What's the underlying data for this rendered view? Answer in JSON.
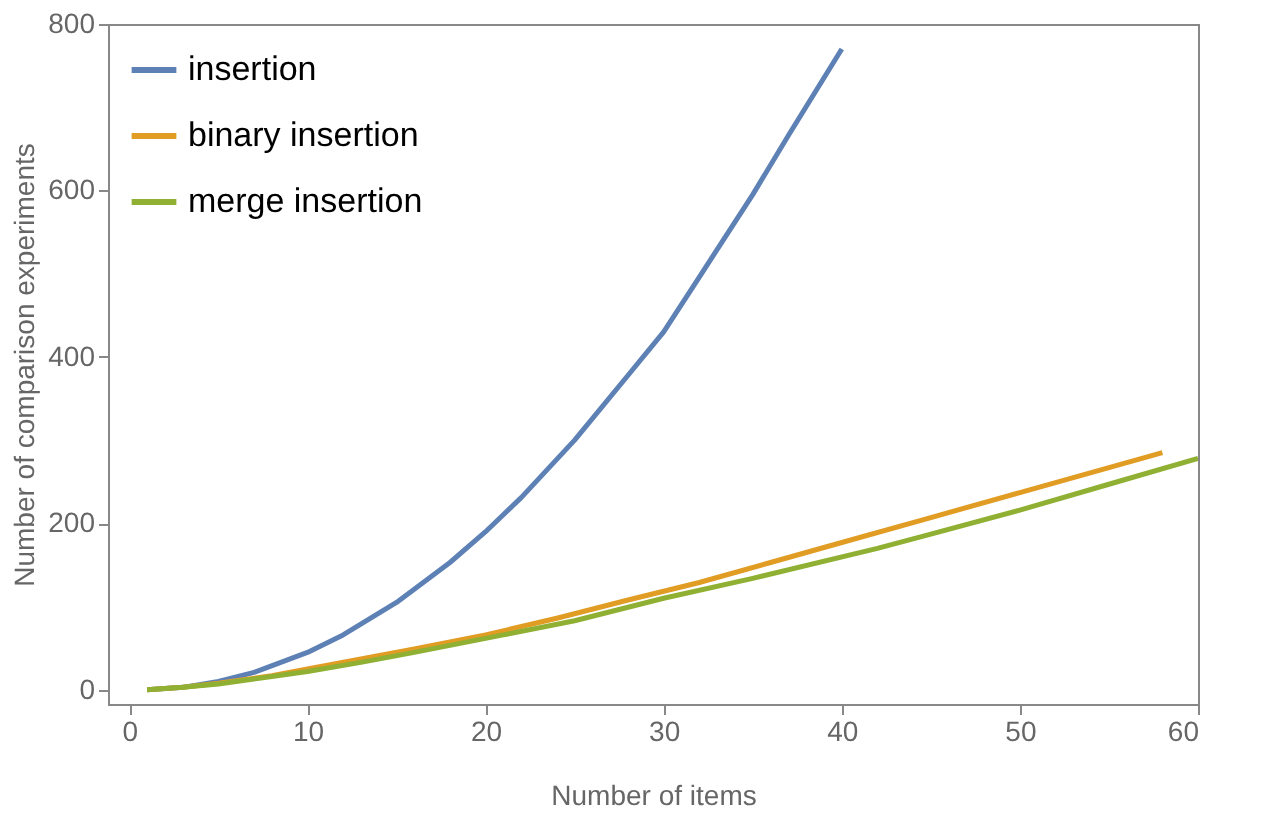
{
  "chart_data": {
    "type": "line",
    "xlabel": "Number of items",
    "ylabel": "Number of comparison experiments",
    "xlim": [
      -1.2,
      60
    ],
    "ylim": [
      -17,
      800
    ],
    "xticks": [
      0,
      10,
      20,
      30,
      40,
      50,
      60
    ],
    "yticks": [
      0,
      200,
      400,
      600,
      800
    ],
    "grid": false,
    "legend": "top left",
    "line_style": "solid",
    "marker": "none",
    "series": [
      {
        "name": "insertion",
        "color": "#5e81b5",
        "x": [
          1,
          3,
          5,
          7,
          10,
          12,
          15,
          18,
          20,
          22,
          25,
          28,
          30,
          32,
          35,
          37,
          40
        ],
        "values": [
          0,
          3,
          10,
          21,
          45,
          66,
          105,
          153,
          190,
          231,
          300,
          378,
          430,
          496,
          595,
          666,
          770
        ]
      },
      {
        "name": "binary insertion",
        "color": "#e19c24",
        "x": [
          1,
          3,
          5,
          8,
          10,
          13,
          16,
          20,
          24,
          28,
          32,
          36,
          40,
          45,
          50,
          55,
          58
        ],
        "values": [
          0,
          3,
          8,
          17,
          25,
          37,
          49,
          66,
          86,
          108,
          129,
          153,
          177,
          207,
          237,
          267,
          285
        ]
      },
      {
        "name": "merge insertion",
        "color": "#8fb032",
        "x": [
          1,
          3,
          5,
          8,
          10,
          13,
          16,
          21,
          25,
          30,
          35,
          42,
          45,
          50,
          55,
          60
        ],
        "values": [
          0,
          3,
          7,
          16,
          22,
          33,
          45,
          66,
          83,
          110,
          134,
          170,
          187,
          216,
          247,
          278
        ]
      }
    ]
  }
}
